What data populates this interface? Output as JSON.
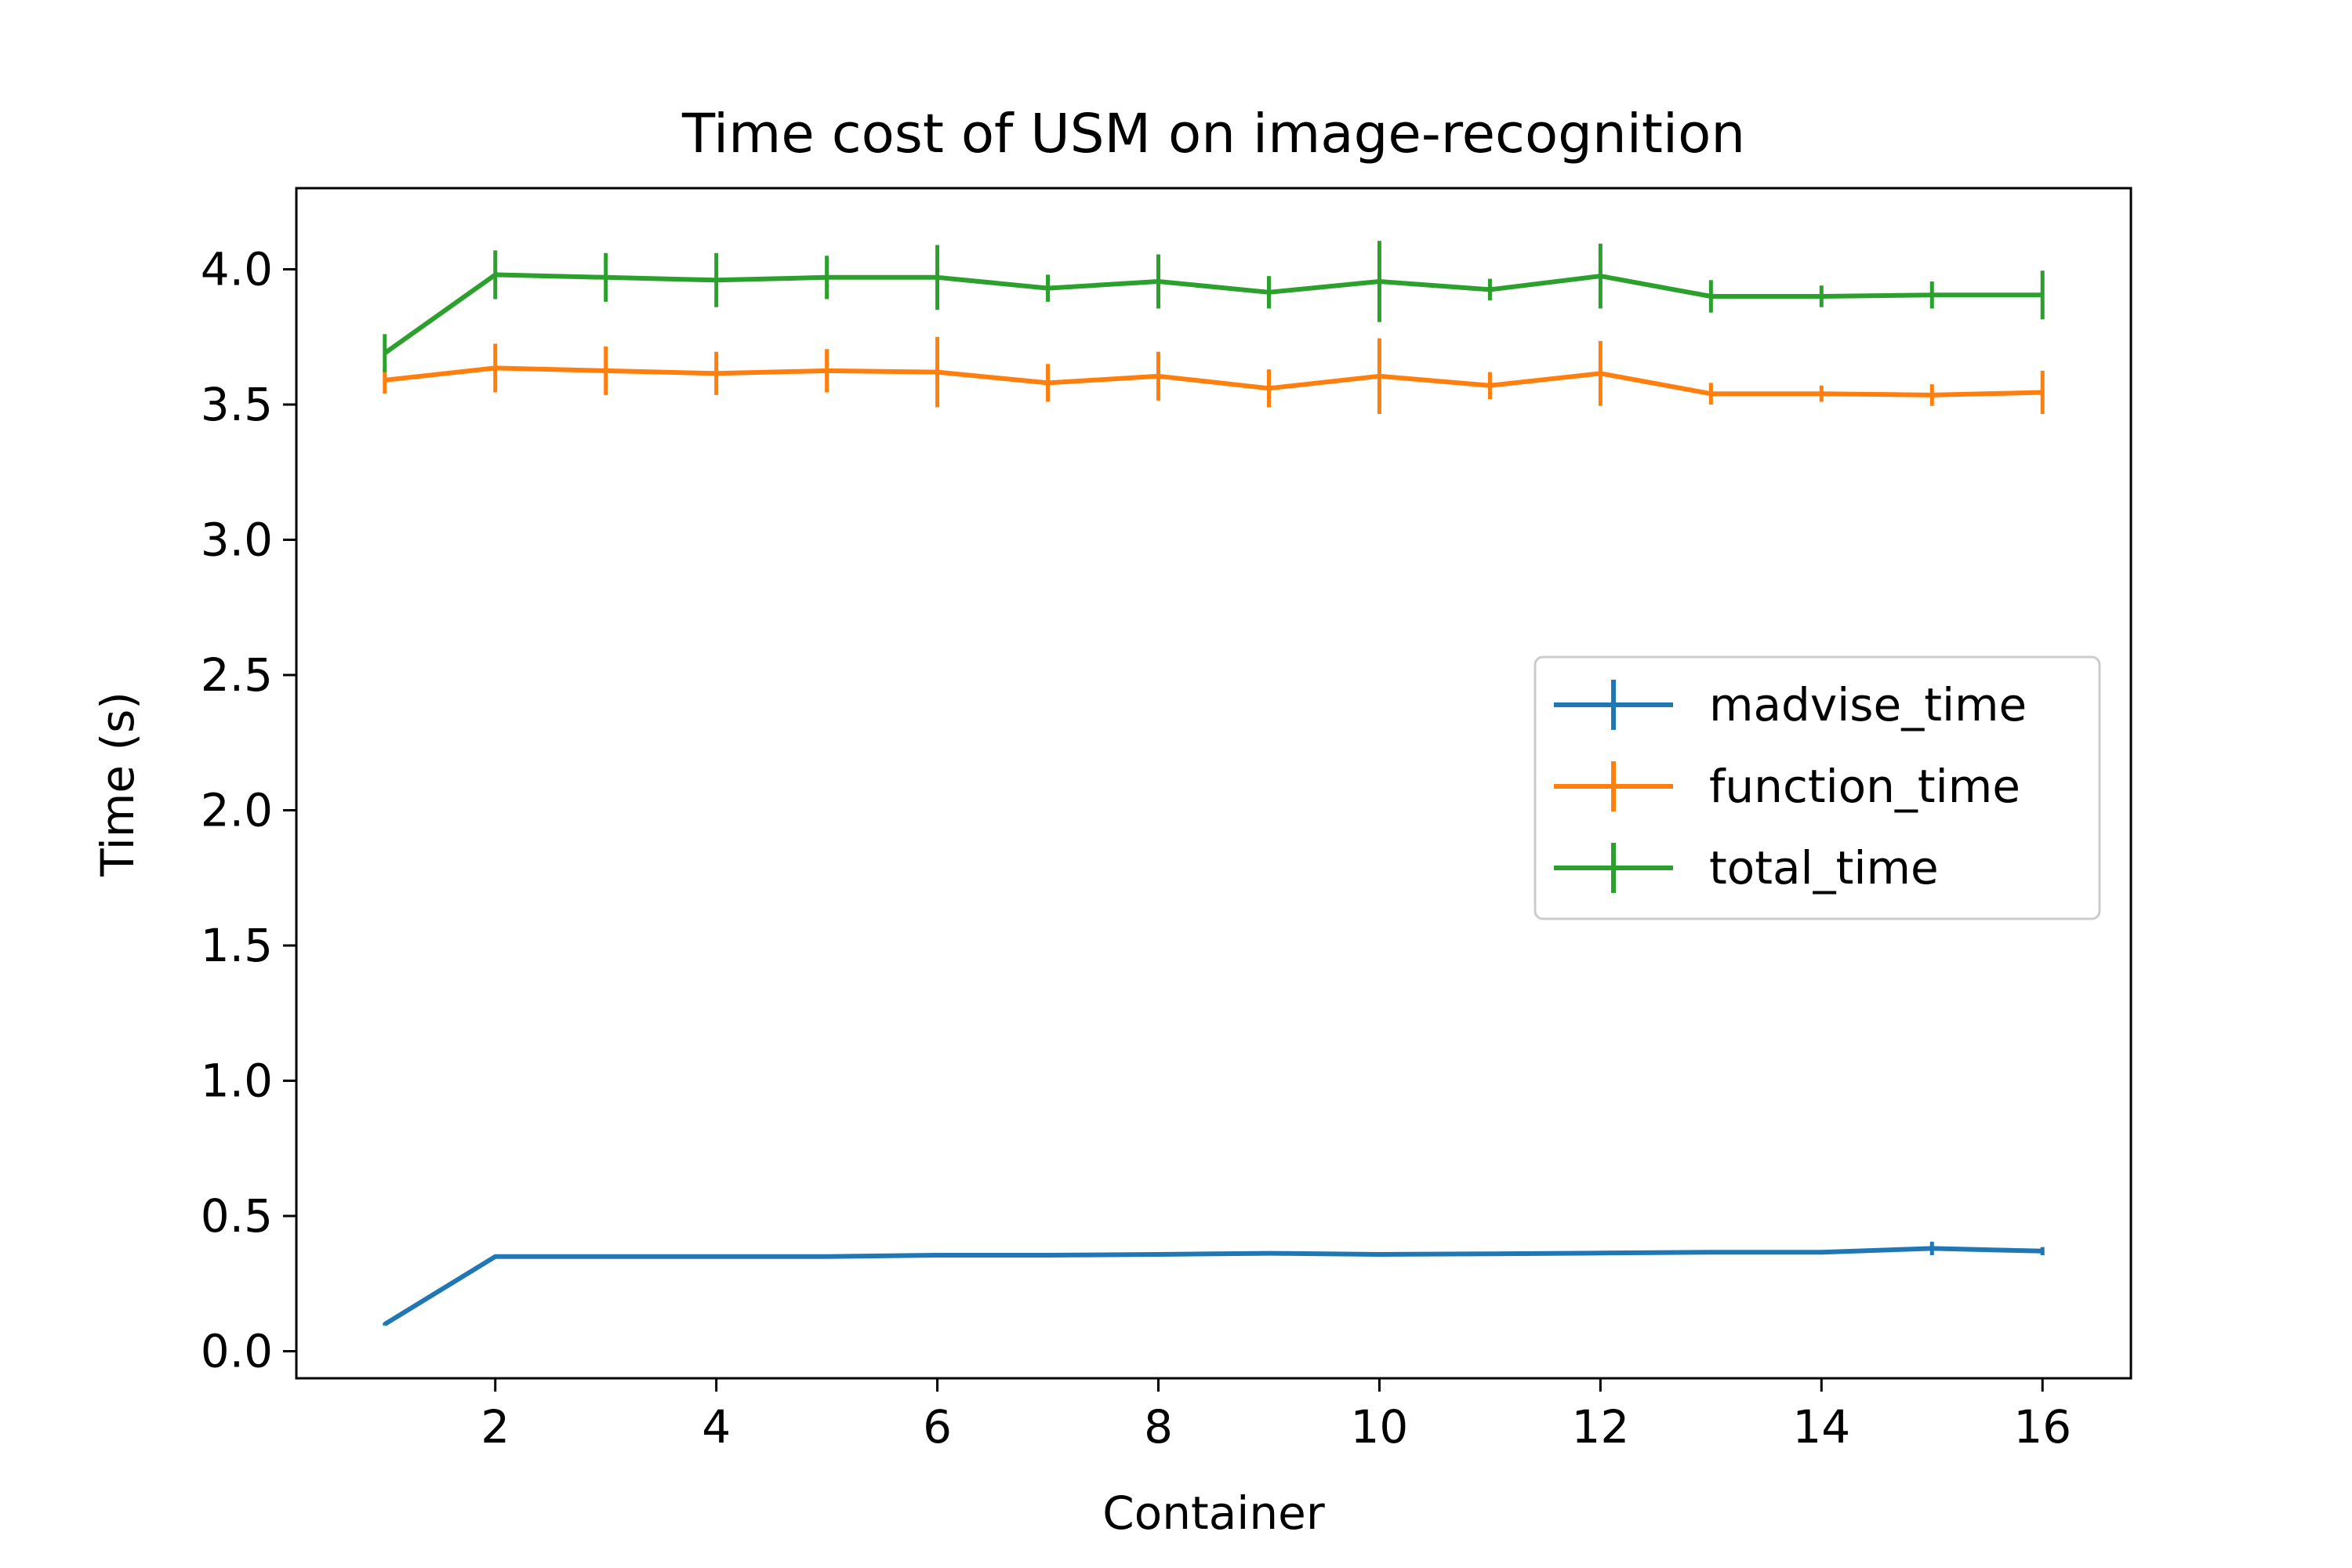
{
  "chart_data": {
    "type": "line",
    "title": "Time cost of USM on image-recognition",
    "xlabel": "Container",
    "ylabel": "Time (s)",
    "xlim": [
      0.2,
      16.8
    ],
    "ylim": [
      -0.1,
      4.3
    ],
    "xticks": [
      2,
      4,
      6,
      8,
      10,
      12,
      14,
      16
    ],
    "yticks": [
      0.0,
      0.5,
      1.0,
      1.5,
      2.0,
      2.5,
      3.0,
      3.5,
      4.0
    ],
    "grid": false,
    "legend_position": "center-right",
    "x": [
      1,
      2,
      3,
      4,
      5,
      6,
      7,
      8,
      9,
      10,
      11,
      12,
      13,
      14,
      15,
      16
    ],
    "series": [
      {
        "name": "madvise_time",
        "color": "#1f77b4",
        "values": [
          0.1,
          0.35,
          0.35,
          0.35,
          0.35,
          0.355,
          0.355,
          0.358,
          0.362,
          0.358,
          0.36,
          0.363,
          0.366,
          0.366,
          0.38,
          0.37
        ],
        "errors": [
          0.005,
          0.005,
          0.004,
          0.004,
          0.004,
          0.005,
          0.005,
          0.008,
          0.006,
          0.006,
          0.005,
          0.006,
          0.006,
          0.006,
          0.025,
          0.015
        ]
      },
      {
        "name": "function_time",
        "color": "#ff7f0e",
        "values": [
          3.59,
          3.635,
          3.625,
          3.615,
          3.625,
          3.62,
          3.58,
          3.605,
          3.56,
          3.605,
          3.57,
          3.615,
          3.54,
          3.54,
          3.535,
          3.545
        ],
        "errors": [
          0.05,
          0.09,
          0.09,
          0.08,
          0.08,
          0.13,
          0.07,
          0.09,
          0.07,
          0.14,
          0.05,
          0.12,
          0.04,
          0.03,
          0.04,
          0.08
        ]
      },
      {
        "name": "total_time",
        "color": "#2ca02c",
        "values": [
          3.69,
          3.98,
          3.97,
          3.96,
          3.97,
          3.97,
          3.93,
          3.955,
          3.915,
          3.955,
          3.925,
          3.975,
          3.9,
          3.9,
          3.905,
          3.905
        ],
        "errors": [
          0.07,
          0.09,
          0.09,
          0.1,
          0.08,
          0.12,
          0.05,
          0.1,
          0.06,
          0.15,
          0.04,
          0.12,
          0.06,
          0.04,
          0.05,
          0.09
        ]
      }
    ]
  }
}
